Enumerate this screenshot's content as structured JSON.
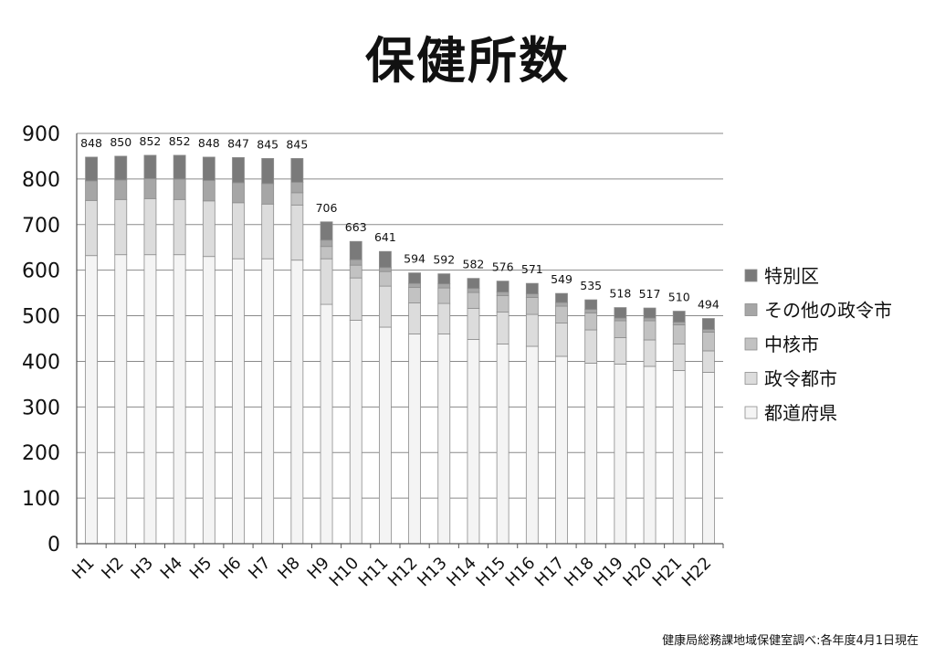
{
  "page": {
    "title": "保健所数",
    "source_note": "健康局総務課地域保健室調べ:各年度4月1日現在"
  },
  "chart_data": {
    "type": "bar",
    "stacked": true,
    "title": "保健所数",
    "xlabel": "",
    "ylabel": "",
    "ylim": [
      0,
      900
    ],
    "yticks": [
      0,
      100,
      200,
      300,
      400,
      500,
      600,
      700,
      800,
      900
    ],
    "grid": true,
    "legend_position": "right",
    "categories": [
      "H1",
      "H2",
      "H3",
      "H4",
      "H5",
      "H6",
      "H7",
      "H8",
      "H9",
      "H10",
      "H11",
      "H12",
      "H13",
      "H14",
      "H15",
      "H16",
      "H17",
      "H18",
      "H19",
      "H20",
      "H21",
      "H22"
    ],
    "totals": [
      848,
      850,
      852,
      852,
      848,
      847,
      845,
      845,
      706,
      663,
      641,
      594,
      592,
      582,
      576,
      571,
      549,
      535,
      518,
      517,
      510,
      494
    ],
    "series": [
      {
        "name": "都道府県",
        "color": "#f4f4f4",
        "values": [
          632,
          634,
          634,
          634,
          630,
          625,
          625,
          622,
          525,
          490,
          475,
          460,
          460,
          448,
          438,
          433,
          411,
          396,
          394,
          389,
          380,
          376
        ]
      },
      {
        "name": "政令都市",
        "color": "#dcdcdc",
        "values": [
          121,
          121,
          123,
          121,
          122,
          123,
          120,
          121,
          100,
          93,
          90,
          68,
          67,
          68,
          70,
          70,
          73,
          73,
          58,
          58,
          58,
          47
        ]
      },
      {
        "name": "中核市",
        "color": "#c2c2c2",
        "values": [
          0,
          0,
          0,
          0,
          0,
          0,
          0,
          27,
          27,
          28,
          32,
          34,
          34,
          35,
          36,
          37,
          37,
          37,
          37,
          42,
          42,
          41
        ]
      },
      {
        "name": "その他の政令市",
        "color": "#a6a6a6",
        "values": [
          43,
          43,
          44,
          45,
          45,
          44,
          45,
          23,
          14,
          12,
          9,
          9,
          9,
          9,
          8,
          8,
          8,
          8,
          6,
          6,
          6,
          6
        ]
      },
      {
        "name": "特別区",
        "color": "#7a7a7a",
        "values": [
          52,
          52,
          51,
          52,
          51,
          55,
          55,
          52,
          40,
          40,
          35,
          23,
          22,
          22,
          24,
          23,
          20,
          21,
          23,
          22,
          24,
          24
        ]
      }
    ]
  }
}
